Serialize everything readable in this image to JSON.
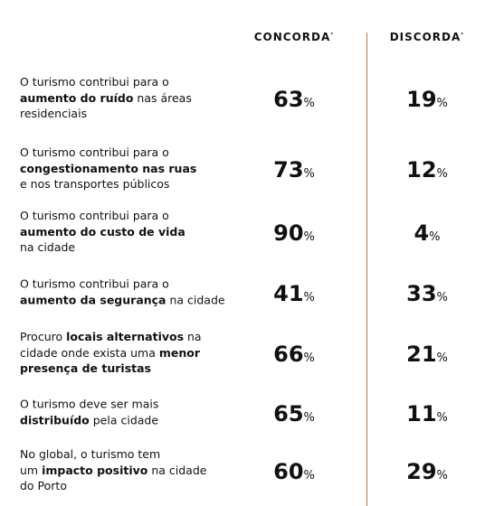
{
  "header": {
    "columns": [
      {
        "label": "CONCORDA",
        "note": "*"
      },
      {
        "label": "DISCORDA",
        "note": "*"
      }
    ]
  },
  "unit": "%",
  "rows": [
    {
      "lines": [
        [
          {
            "text": "O turismo contribui para o",
            "bold": false
          }
        ],
        [
          {
            "text": "aumento do ruído",
            "bold": true
          },
          {
            "text": " nas áreas",
            "bold": false
          }
        ],
        [
          {
            "text": "residenciais",
            "bold": false
          }
        ]
      ],
      "concorda": 63,
      "discorda": 19
    },
    {
      "lines": [
        [
          {
            "text": "O turismo contribui para o",
            "bold": false
          }
        ],
        [
          {
            "text": "congestionamento nas ruas",
            "bold": true
          }
        ],
        [
          {
            "text": "e nos transportes públicos",
            "bold": false
          }
        ]
      ],
      "concorda": 73,
      "discorda": 12
    },
    {
      "lines": [
        [
          {
            "text": "O turismo contribui para o",
            "bold": false
          }
        ],
        [
          {
            "text": "aumento do custo de vida",
            "bold": true
          }
        ],
        [
          {
            "text": "na cidade",
            "bold": false
          }
        ]
      ],
      "concorda": 90,
      "discorda": 4
    },
    {
      "lines": [
        [
          {
            "text": "O turismo contribui para o",
            "bold": false
          }
        ],
        [
          {
            "text": "aumento da segurança",
            "bold": true
          },
          {
            "text": " na cidade",
            "bold": false
          }
        ]
      ],
      "concorda": 41,
      "discorda": 33
    },
    {
      "lines": [
        [
          {
            "text": "Procuro ",
            "bold": false
          },
          {
            "text": "locais alternativos",
            "bold": true
          },
          {
            "text": " na",
            "bold": false
          }
        ],
        [
          {
            "text": "cidade onde exista uma ",
            "bold": false
          },
          {
            "text": "menor",
            "bold": true
          }
        ],
        [
          {
            "text": "presença de turistas",
            "bold": true
          }
        ]
      ],
      "concorda": 66,
      "discorda": 21
    },
    {
      "lines": [
        [
          {
            "text": "O turismo deve ser mais",
            "bold": false
          }
        ],
        [
          {
            "text": "distribuído",
            "bold": true
          },
          {
            "text": " pela cidade",
            "bold": false
          }
        ]
      ],
      "concorda": 65,
      "discorda": 11
    },
    {
      "lines": [
        [
          {
            "text": "No global, o turismo tem",
            "bold": false
          }
        ],
        [
          {
            "text": "um ",
            "bold": false
          },
          {
            "text": "impacto positivo",
            "bold": true
          },
          {
            "text": " na cidade",
            "bold": false
          }
        ],
        [
          {
            "text": "do Porto",
            "bold": false
          }
        ]
      ],
      "concorda": 60,
      "discorda": 29
    }
  ]
}
